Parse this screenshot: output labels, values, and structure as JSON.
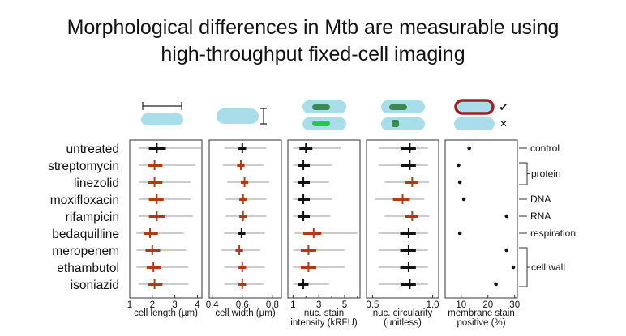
{
  "title": {
    "line1": "Morphological differences in Mtb are measurable using",
    "line2": "high-throughput fixed-cell imaging"
  },
  "colors": {
    "untreated_like": "#111111",
    "different": "#b23a12",
    "whisker": "#999999",
    "cell_fill": "#a8dde9",
    "nucleoid_dark": "#3a8a4a",
    "nucleoid_bright": "#22cc44",
    "membrane_positive": "#9b2226"
  },
  "icons": [
    "length-scale-icon",
    "width-scale-icon",
    "nucleoid-intensity-icon",
    "nucleoid-circularity-icon",
    "membrane-stain-icon"
  ],
  "icon_marks": {
    "check": "✔",
    "cross": "✕"
  },
  "conditions": [
    "untreated",
    "streptomycin",
    "linezolid",
    "moxifloxacin",
    "rifampicin",
    "bedaquilline",
    "meropenem",
    "ethambutol",
    "isoniazid"
  ],
  "mechanisms": [
    {
      "label": "control",
      "rows": [
        0
      ]
    },
    {
      "label": "protein",
      "rows": [
        1,
        2
      ]
    },
    {
      "label": "DNA",
      "rows": [
        3
      ]
    },
    {
      "label": "RNA",
      "rows": [
        4
      ]
    },
    {
      "label": "respiration",
      "rows": [
        5
      ]
    },
    {
      "label": "cell wall",
      "rows": [
        6,
        7,
        8
      ]
    }
  ],
  "chart_data": [
    {
      "type": "box",
      "xlabel": "cell length (µm)",
      "xlim": [
        1,
        4.2
      ],
      "ticks": [
        1,
        2,
        3,
        4
      ],
      "tick_labels": [
        "1",
        "2",
        "3",
        "4"
      ],
      "series": [
        {
          "condition": "untreated",
          "whisker": [
            1.4,
            4.2
          ],
          "box": [
            1.85,
            2.6
          ],
          "median": 2.2,
          "color": "black"
        },
        {
          "condition": "streptomycin",
          "whisker": [
            1.4,
            3.9
          ],
          "box": [
            1.8,
            2.45
          ],
          "median": 2.1,
          "color": "red"
        },
        {
          "condition": "linezolid",
          "whisker": [
            1.4,
            3.7
          ],
          "box": [
            1.8,
            2.45
          ],
          "median": 2.1,
          "color": "red"
        },
        {
          "condition": "moxifloxacin",
          "whisker": [
            1.4,
            3.7
          ],
          "box": [
            1.85,
            2.5
          ],
          "median": 2.2,
          "color": "red"
        },
        {
          "condition": "rifampicin",
          "whisker": [
            1.4,
            3.8
          ],
          "box": [
            1.85,
            2.55
          ],
          "median": 2.2,
          "color": "red"
        },
        {
          "condition": "bedaquilline",
          "whisker": [
            1.3,
            3.4
          ],
          "box": [
            1.65,
            2.25
          ],
          "median": 1.9,
          "color": "red"
        },
        {
          "condition": "meropenem",
          "whisker": [
            1.3,
            3.5
          ],
          "box": [
            1.7,
            2.35
          ],
          "median": 2.0,
          "color": "red"
        },
        {
          "condition": "ethambutol",
          "whisker": [
            1.3,
            3.6
          ],
          "box": [
            1.75,
            2.4
          ],
          "median": 2.05,
          "color": "red"
        },
        {
          "condition": "isoniazid",
          "whisker": [
            1.4,
            3.6
          ],
          "box": [
            1.8,
            2.45
          ],
          "median": 2.1,
          "color": "red"
        }
      ]
    },
    {
      "type": "box",
      "xlabel": "cell width (µm)",
      "xlim": [
        0.38,
        0.86
      ],
      "ticks": [
        0.4,
        0.6,
        0.8
      ],
      "tick_labels": [
        "0.4",
        "0.6",
        "0.8"
      ],
      "series": [
        {
          "condition": "untreated",
          "whisker": [
            0.48,
            0.76
          ],
          "box": [
            0.575,
            0.625
          ],
          "median": 0.6,
          "color": "black"
        },
        {
          "condition": "streptomycin",
          "whisker": [
            0.47,
            0.74
          ],
          "box": [
            0.565,
            0.615
          ],
          "median": 0.59,
          "color": "red"
        },
        {
          "condition": "linezolid",
          "whisker": [
            0.5,
            0.78
          ],
          "box": [
            0.59,
            0.64
          ],
          "median": 0.615,
          "color": "red"
        },
        {
          "condition": "moxifloxacin",
          "whisker": [
            0.49,
            0.76
          ],
          "box": [
            0.58,
            0.63
          ],
          "median": 0.605,
          "color": "red"
        },
        {
          "condition": "rifampicin",
          "whisker": [
            0.49,
            0.76
          ],
          "box": [
            0.58,
            0.63
          ],
          "median": 0.605,
          "color": "red"
        },
        {
          "condition": "bedaquilline",
          "whisker": [
            0.48,
            0.75
          ],
          "box": [
            0.57,
            0.62
          ],
          "median": 0.595,
          "color": "black"
        },
        {
          "condition": "meropenem",
          "whisker": [
            0.46,
            0.72
          ],
          "box": [
            0.555,
            0.605
          ],
          "median": 0.58,
          "color": "red"
        },
        {
          "condition": "ethambutol",
          "whisker": [
            0.48,
            0.75
          ],
          "box": [
            0.575,
            0.625
          ],
          "median": 0.6,
          "color": "red"
        },
        {
          "condition": "isoniazid",
          "whisker": [
            0.48,
            0.74
          ],
          "box": [
            0.575,
            0.625
          ],
          "median": 0.6,
          "color": "red"
        }
      ]
    },
    {
      "type": "box",
      "xlabel": "nuc. stain",
      "xlabel2": "intensity (kRFU)",
      "xlim": [
        0.6,
        6.2
      ],
      "ticks": [
        1,
        3,
        5
      ],
      "tick_labels": [
        "1",
        "3",
        "5"
      ],
      "minor_ticks": [
        2,
        4,
        6
      ],
      "series": [
        {
          "condition": "untreated",
          "whisker": [
            1.0,
            4.7
          ],
          "box": [
            1.5,
            2.5
          ],
          "median": 2.0,
          "color": "black"
        },
        {
          "condition": "streptomycin",
          "whisker": [
            1.0,
            4.0
          ],
          "box": [
            1.4,
            2.3
          ],
          "median": 1.8,
          "color": "black"
        },
        {
          "condition": "linezolid",
          "whisker": [
            1.0,
            3.8
          ],
          "box": [
            1.4,
            2.3
          ],
          "median": 1.8,
          "color": "black"
        },
        {
          "condition": "moxifloxacin",
          "whisker": [
            1.0,
            4.0
          ],
          "box": [
            1.4,
            2.3
          ],
          "median": 1.8,
          "color": "black"
        },
        {
          "condition": "rifampicin",
          "whisker": [
            1.0,
            3.9
          ],
          "box": [
            1.4,
            2.3
          ],
          "median": 1.8,
          "color": "black"
        },
        {
          "condition": "bedaquilline",
          "whisker": [
            1.1,
            6.0
          ],
          "box": [
            1.8,
            3.2
          ],
          "median": 2.6,
          "color": "red"
        },
        {
          "condition": "meropenem",
          "whisker": [
            1.0,
            5.0
          ],
          "box": [
            1.6,
            2.8
          ],
          "median": 2.2,
          "color": "red"
        },
        {
          "condition": "ethambutol",
          "whisker": [
            1.0,
            5.0
          ],
          "box": [
            1.6,
            2.8
          ],
          "median": 2.2,
          "color": "red"
        },
        {
          "condition": "isoniazid",
          "whisker": [
            1.0,
            3.8
          ],
          "box": [
            1.4,
            2.2
          ],
          "median": 1.8,
          "color": "black"
        }
      ]
    },
    {
      "type": "box",
      "xlabel": "nuc. circularity",
      "xlabel2": "(unitless)",
      "xlim": [
        0.45,
        1.05
      ],
      "ticks": [
        0.5,
        1.0
      ],
      "tick_labels": [
        "0.5",
        "1.0"
      ],
      "series": [
        {
          "condition": "untreated",
          "whisker": [
            0.55,
            0.96
          ],
          "box": [
            0.74,
            0.86
          ],
          "median": 0.81,
          "color": "black"
        },
        {
          "condition": "streptomycin",
          "whisker": [
            0.55,
            0.96
          ],
          "box": [
            0.74,
            0.86
          ],
          "median": 0.81,
          "color": "black"
        },
        {
          "condition": "linezolid",
          "whisker": [
            0.6,
            0.97
          ],
          "box": [
            0.77,
            0.88
          ],
          "median": 0.83,
          "color": "red"
        },
        {
          "condition": "moxifloxacin",
          "whisker": [
            0.52,
            0.93
          ],
          "box": [
            0.67,
            0.81
          ],
          "median": 0.75,
          "color": "red"
        },
        {
          "condition": "rifampicin",
          "whisker": [
            0.6,
            0.97
          ],
          "box": [
            0.77,
            0.88
          ],
          "median": 0.83,
          "color": "red"
        },
        {
          "condition": "bedaquilline",
          "whisker": [
            0.55,
            0.96
          ],
          "box": [
            0.73,
            0.86
          ],
          "median": 0.8,
          "color": "black"
        },
        {
          "condition": "meropenem",
          "whisker": [
            0.55,
            0.96
          ],
          "box": [
            0.73,
            0.86
          ],
          "median": 0.8,
          "color": "black"
        },
        {
          "condition": "ethambutol",
          "whisker": [
            0.55,
            0.96
          ],
          "box": [
            0.73,
            0.86
          ],
          "median": 0.8,
          "color": "black"
        },
        {
          "condition": "isoniazid",
          "whisker": [
            0.55,
            0.96
          ],
          "box": [
            0.74,
            0.86
          ],
          "median": 0.81,
          "color": "black"
        }
      ]
    },
    {
      "type": "scatter",
      "xlabel": "membrane stain",
      "xlabel2": "positive (%)",
      "xlim": [
        4,
        31
      ],
      "ticks": [
        10,
        20,
        30
      ],
      "tick_labels": [
        "10",
        "20",
        "30"
      ],
      "values": [
        {
          "condition": "untreated",
          "value": 13
        },
        {
          "condition": "streptomycin",
          "value": 9
        },
        {
          "condition": "linezolid",
          "value": 9.5
        },
        {
          "condition": "moxifloxacin",
          "value": 11
        },
        {
          "condition": "rifampicin",
          "value": 27
        },
        {
          "condition": "bedaquilline",
          "value": 9.5
        },
        {
          "condition": "meropenem",
          "value": 27
        },
        {
          "condition": "ethambutol",
          "value": 29.5
        },
        {
          "condition": "isoniazid",
          "value": 23
        }
      ]
    }
  ]
}
